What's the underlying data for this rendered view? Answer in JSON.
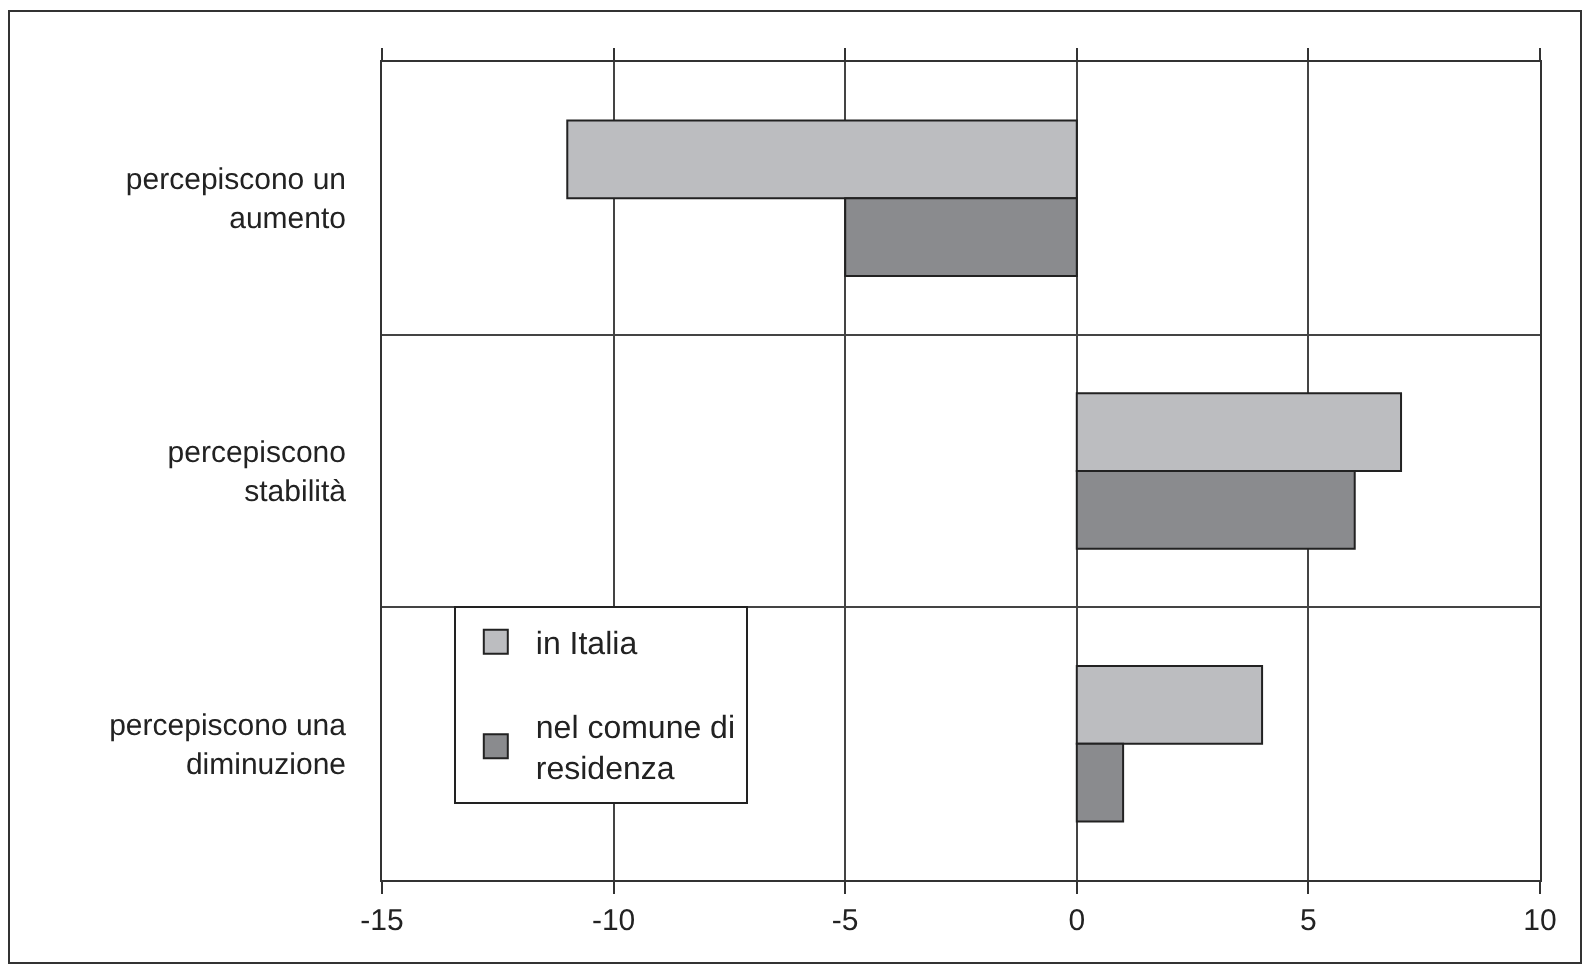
{
  "chart_data": {
    "type": "bar",
    "orientation": "horizontal",
    "categories": [
      "percepiscono un aumento",
      "percepiscono stabilità",
      "percepiscono una diminuzione"
    ],
    "series": [
      {
        "name": "in Italia",
        "color": "#bcbdc0",
        "values": [
          -11,
          7,
          4
        ]
      },
      {
        "name": "nel comune di residenza",
        "color": "#8a8b8e",
        "values": [
          -5,
          6,
          1
        ]
      }
    ],
    "xlim": [
      -15,
      10
    ],
    "xticks": [
      -15,
      -10,
      -5,
      0,
      5,
      10
    ],
    "grid": true,
    "legend": "bottom left"
  }
}
